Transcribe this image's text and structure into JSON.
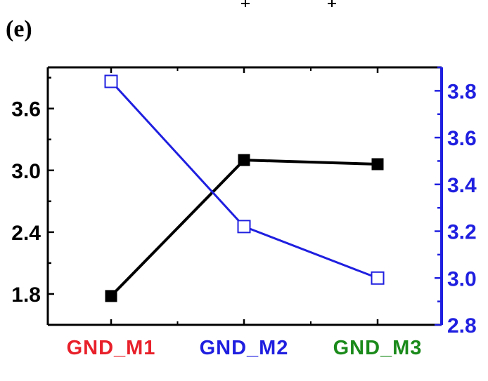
{
  "panel_label": "(e)",
  "chart_data": {
    "type": "line",
    "categories": [
      "GND_M1",
      "GND_M2",
      "GND_M3"
    ],
    "category_colors": [
      "#e8202a",
      "#1f1fe0",
      "#1a8a1a"
    ],
    "y_left": {
      "lim": [
        1.5,
        4.0
      ],
      "ticks": [
        1.8,
        2.4,
        3.0,
        3.6
      ],
      "tick_labels": [
        "1.8",
        "2.4",
        "3.0",
        "3.6"
      ],
      "color": "#000000"
    },
    "y_right": {
      "lim": [
        2.8,
        3.9
      ],
      "ticks": [
        2.8,
        3.0,
        3.2,
        3.4,
        3.6,
        3.8
      ],
      "tick_labels": [
        "2.8",
        "3.0",
        "3.2",
        "3.4",
        "3.6",
        "3.8"
      ],
      "color": "#1f1fe0"
    },
    "series": [
      {
        "axis": "left",
        "values": [
          1.78,
          3.1,
          3.06
        ],
        "color": "#000000",
        "marker": "filled-square"
      },
      {
        "axis": "right",
        "values": [
          3.84,
          3.22,
          3.0
        ],
        "color": "#1f1fe0",
        "marker": "open-square"
      }
    ],
    "title": "",
    "xlabel": "",
    "ylabel": ""
  }
}
